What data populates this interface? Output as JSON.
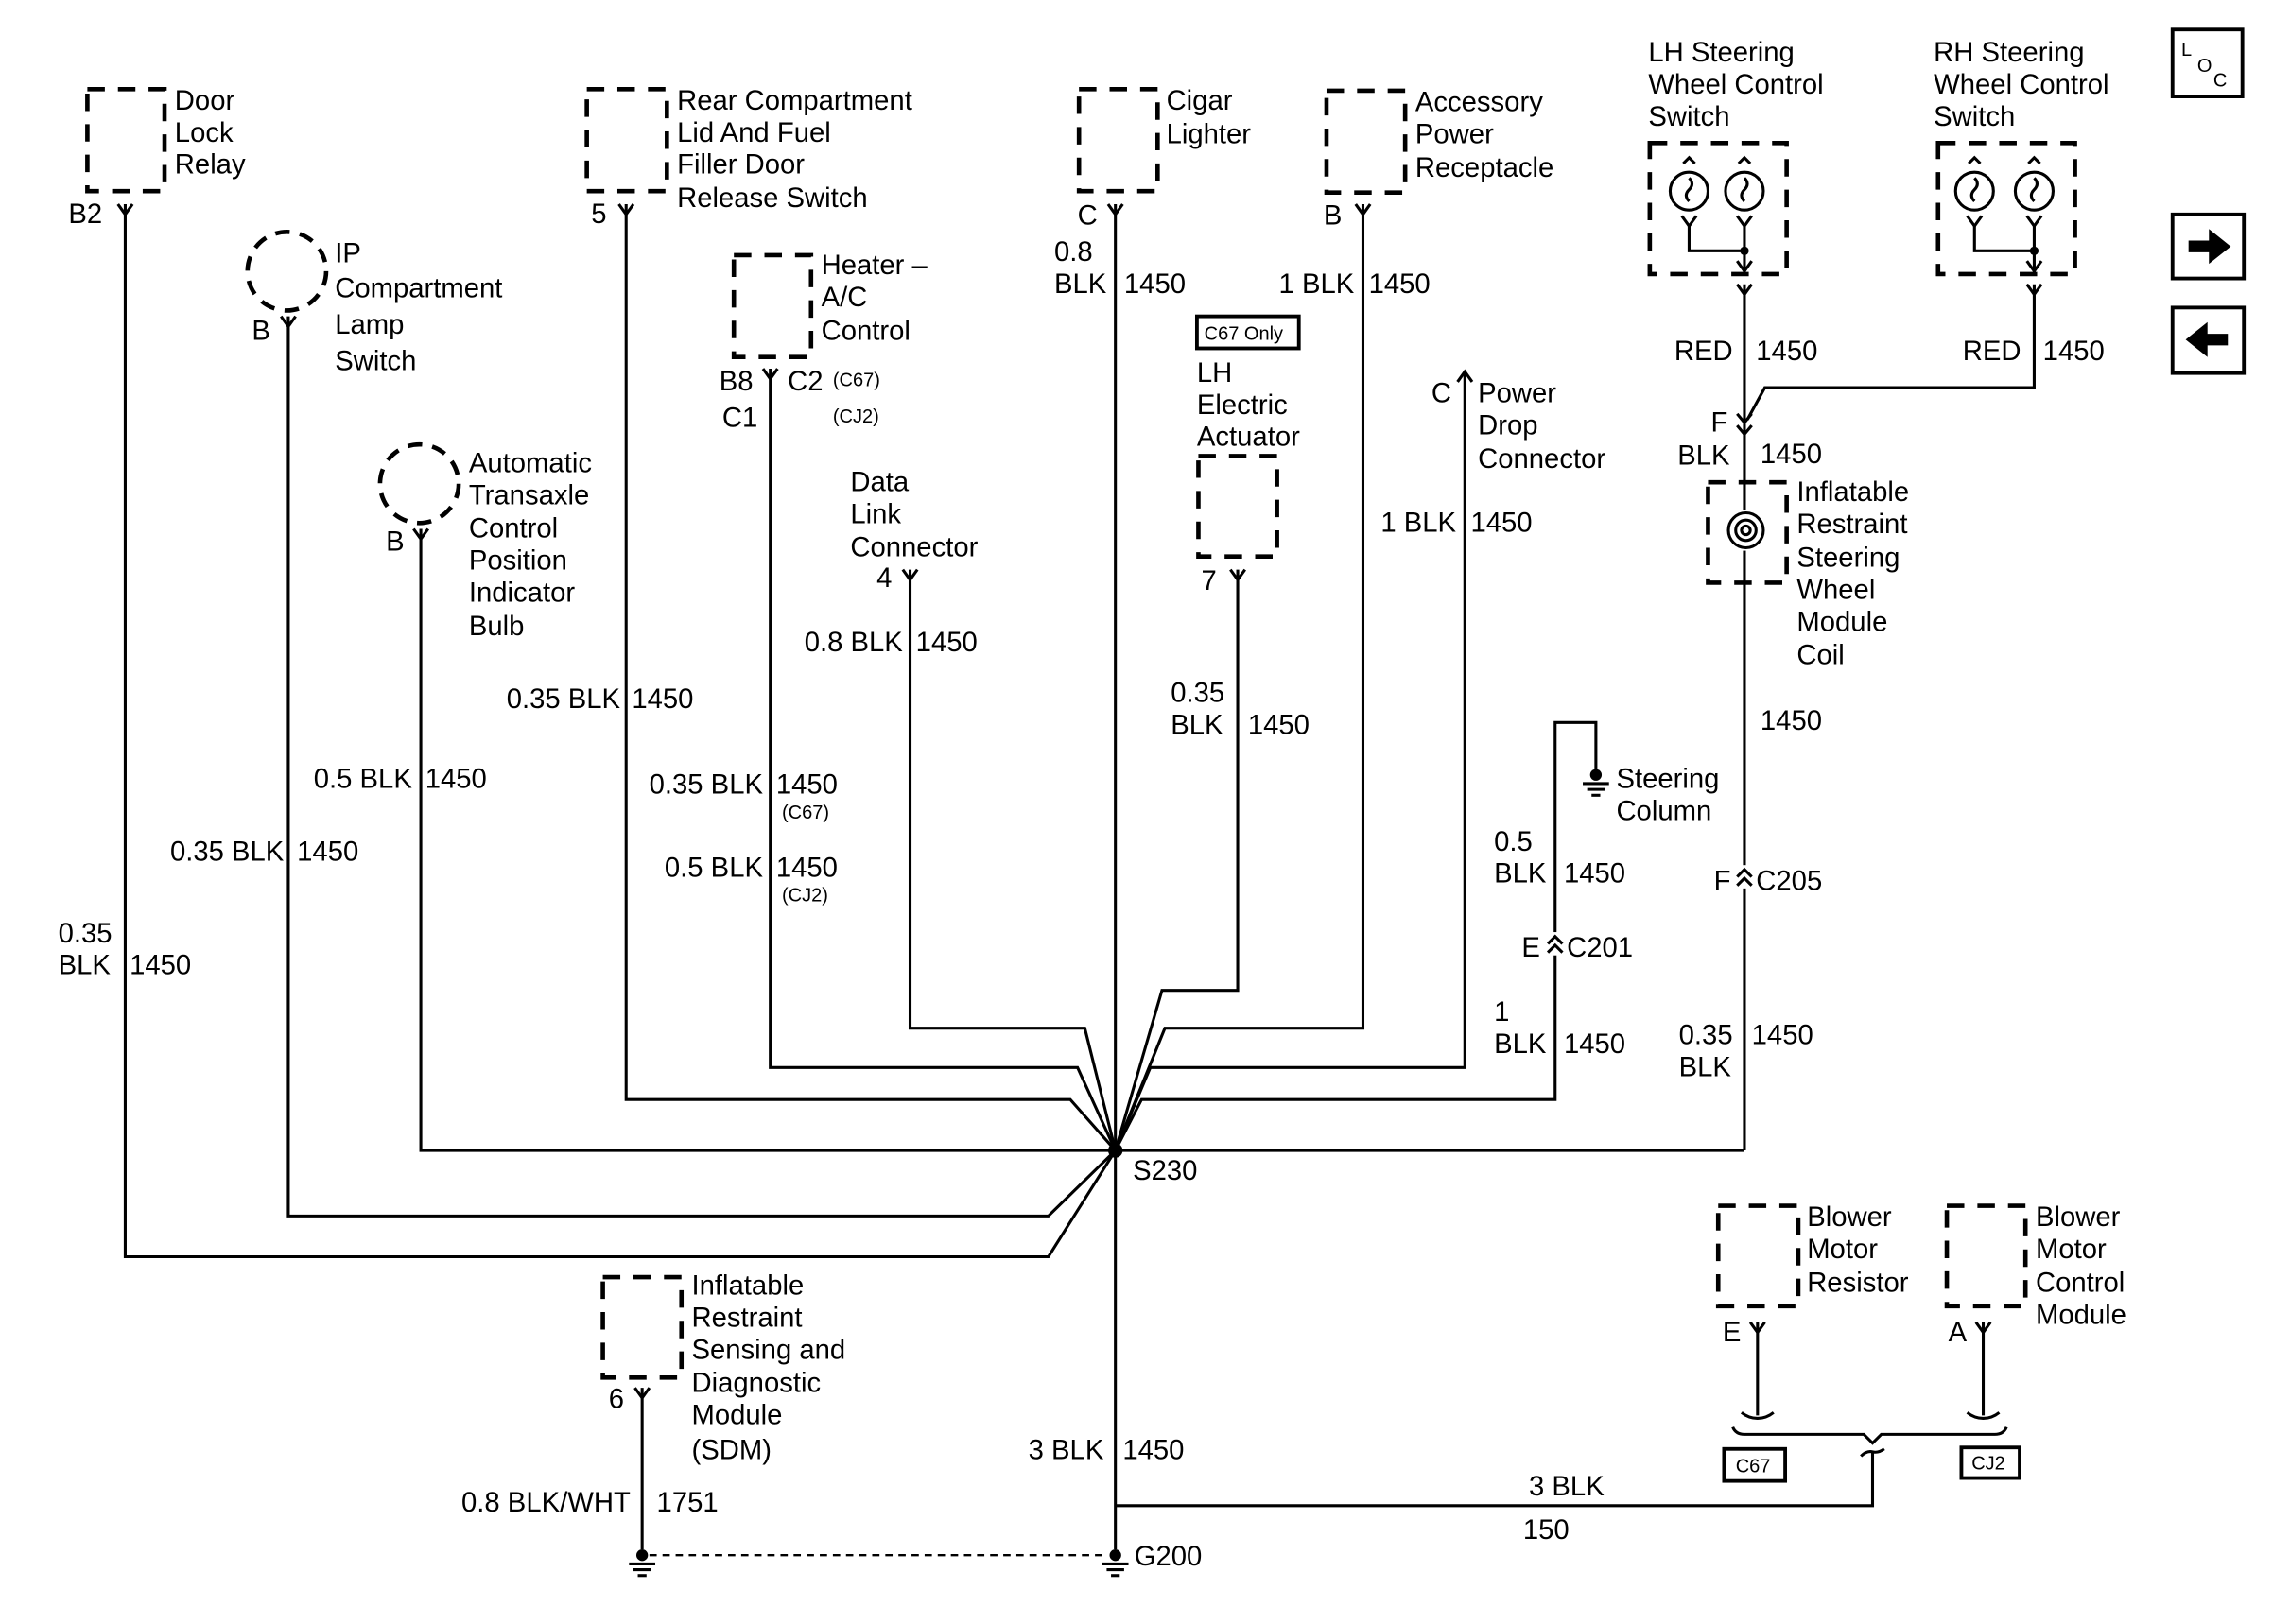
{
  "nav": {
    "loc_letters": [
      "L",
      "O",
      "C"
    ],
    "next_icon": "right-arrow-icon",
    "prev_icon": "left-arrow-icon"
  },
  "components": {
    "door_lock_relay": {
      "label": [
        "Door",
        "Lock",
        "Relay"
      ],
      "pin": "B2",
      "wire": {
        "size": "0.35",
        "color": "BLK",
        "circuit": "1450"
      }
    },
    "ip_lamp_switch": {
      "label": [
        "IP",
        "Compartment",
        "Lamp",
        "Switch"
      ],
      "pin": "B",
      "wire": {
        "size_color": "0.35 BLK",
        "circuit": "1450"
      }
    },
    "transaxle_bulb": {
      "label": [
        "Automatic",
        "Transaxle",
        "Control",
        "Position",
        "Indicator",
        "Bulb"
      ],
      "pin": "B",
      "wire": {
        "size_color": "0.5 BLK",
        "circuit": "1450"
      }
    },
    "rear_compartment_switch": {
      "label": [
        "Rear Compartment",
        "Lid And Fuel",
        "Filler Door",
        "Release Switch"
      ],
      "pin": "5",
      "wire": {
        "size_color": "0.35 BLK",
        "circuit": "1450"
      }
    },
    "heater_ac_control": {
      "label": [
        "Heater –",
        "A/C",
        "Control"
      ],
      "pins": {
        "b8": "B8",
        "c1": "C1",
        "c2": "C2",
        "c67": "(C67)",
        "cj2": "(CJ2)"
      },
      "wires": [
        {
          "size_color": "0.35 BLK",
          "circuit": "1450",
          "option": "(C67)"
        },
        {
          "size_color": "0.5 BLK",
          "circuit": "1450",
          "option": "(CJ2)"
        }
      ]
    },
    "data_link_connector": {
      "label": [
        "Data",
        "Link",
        "Connector"
      ],
      "pin": "4",
      "wire": {
        "size_color": "0.8 BLK",
        "circuit": "1450"
      }
    },
    "cigar_lighter": {
      "label": [
        "Cigar",
        "Lighter"
      ],
      "pin": "C",
      "wire": {
        "size": "0.8",
        "color": "BLK",
        "circuit": "1450"
      }
    },
    "accessory_power_receptacle": {
      "label": [
        "Accessory",
        "Power",
        "Receptacle"
      ],
      "pin": "B",
      "wire": {
        "size_color": "1 BLK",
        "circuit": "1450"
      }
    },
    "lh_electric_actuator": {
      "option_box": "C67 Only",
      "label": [
        "LH",
        "Electric",
        "Actuator"
      ],
      "pin": "7",
      "wire": {
        "size": "0.35",
        "color": "BLK",
        "circuit": "1450"
      }
    },
    "power_drop_connector": {
      "label": [
        "Power",
        "Drop",
        "Connector"
      ],
      "pin": "C",
      "wire": {
        "size_color": "1 BLK",
        "circuit": "1450"
      }
    },
    "steering_column": {
      "label": [
        "Steering",
        "Column"
      ],
      "connector": {
        "pin": "E",
        "name": "C201"
      },
      "wire_upper": {
        "size": "0.5",
        "color": "BLK",
        "circuit": "1450"
      },
      "wire_lower": {
        "size": "1",
        "color": "BLK",
        "circuit": "1450"
      }
    },
    "lh_swc_switch": {
      "label": [
        "LH Steering",
        "Wheel Control",
        "Switch"
      ],
      "wire": {
        "color": "RED",
        "circuit": "1450"
      }
    },
    "rh_swc_switch": {
      "label": [
        "RH Steering",
        "Wheel Control",
        "Switch"
      ],
      "wire": {
        "color": "RED",
        "circuit": "1450"
      }
    },
    "sir_coil": {
      "label": [
        "Inflatable",
        "Restraint",
        "Steering",
        "Wheel",
        "Module",
        "Coil"
      ],
      "pin": "F",
      "wire_top": {
        "color": "BLK",
        "circuit": "1450"
      },
      "wire_mid": {
        "circuit": "1450"
      },
      "connector": {
        "pin": "F",
        "name": "C205"
      },
      "wire_bottom": {
        "size": "0.35",
        "color": "BLK",
        "circuit": "1450"
      }
    },
    "sdm": {
      "label": [
        "Inflatable",
        "Restraint",
        "Sensing and",
        "Diagnostic",
        "Module",
        "(SDM)"
      ],
      "pin": "6",
      "wire": {
        "size_color": "0.8 BLK/WHT",
        "circuit": "1751"
      }
    },
    "blower_motor_resistor": {
      "label": [
        "Blower",
        "Motor",
        "Resistor"
      ],
      "pin": "E",
      "option": "C67"
    },
    "blower_motor_control_module": {
      "label": [
        "Blower",
        "Motor",
        "Control",
        "Module"
      ],
      "pin": "A",
      "option": "CJ2"
    }
  },
  "splice": {
    "name": "S230"
  },
  "ground": {
    "name": "G200",
    "wire": {
      "size_color": "3 BLK",
      "circuit": "1450"
    }
  },
  "blower_ground_wire": {
    "size_color": "3 BLK",
    "circuit": "150"
  }
}
